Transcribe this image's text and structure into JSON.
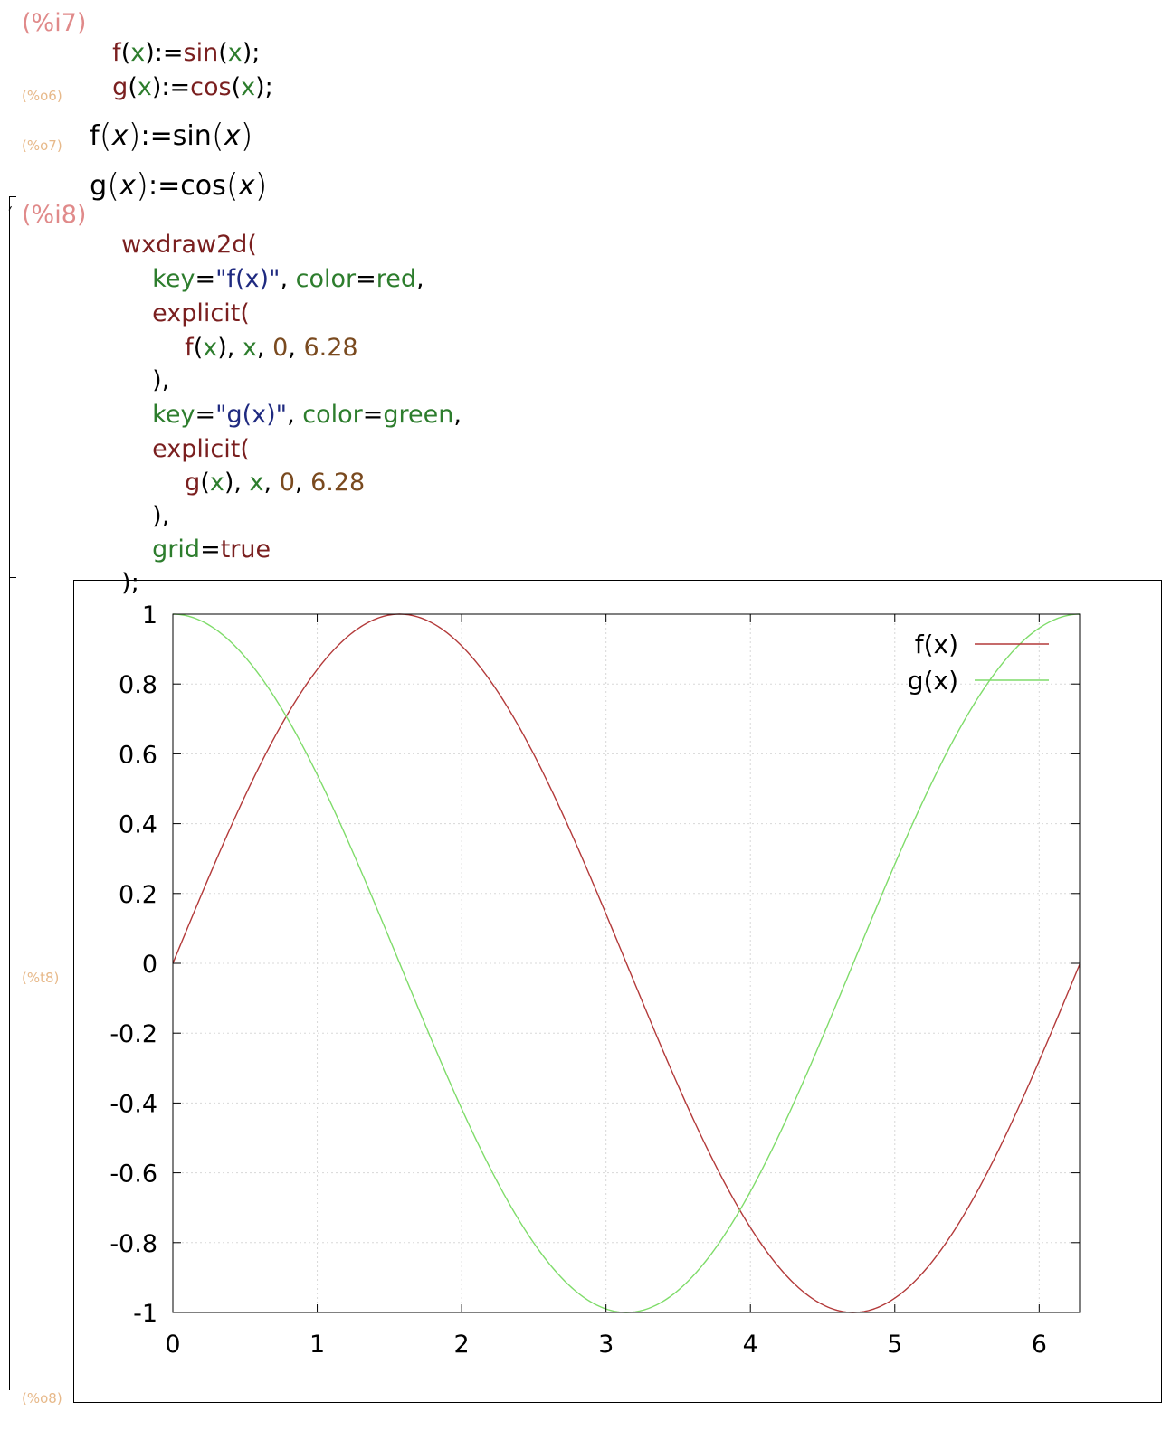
{
  "cells": {
    "c1_input_label": "(%i7)",
    "c1_line1": {
      "fname": "f",
      "paren_open": "(",
      "var": "x",
      "paren_close": ")",
      "assign": ":=",
      "rhs_fn": "sin",
      "rhs_open": "(",
      "rhs_var": "x",
      "rhs_close": ");"
    },
    "c1_line2": {
      "fname": "g",
      "paren_open": "(",
      "var": "x",
      "paren_close": ")",
      "assign": ":=",
      "rhs_fn": "cos",
      "rhs_open": "(",
      "rhs_var": "x",
      "rhs_close": ");"
    },
    "o6_label": "(%o6)",
    "o6": {
      "name": "f",
      "var": "x",
      "assign": ":=",
      "fn": "sin",
      "fnvar": "x"
    },
    "o7_label": "(%o7)",
    "o7": {
      "name": "g",
      "var": "x",
      "assign": ":=",
      "fn": "cos",
      "fnvar": "x"
    },
    "c2_input_label": "(%i8)",
    "c2_lines": {
      "l1": "wxdraw2d(",
      "l2_key": "key",
      "l2_eq": "=",
      "l2_q1": "\"",
      "l2_str": "f(x)",
      "l2_q2": "\"",
      "l2_comma": ", ",
      "l2_color": "color",
      "l2_eq2": "=",
      "l2_val": "red",
      "l2_end": ",",
      "l3": "explicit(",
      "l4_f": "f",
      "l4_open": "(",
      "l4_x": "x",
      "l4_close": "), ",
      "l4_x2": "x",
      "l4_c1": ", ",
      "l4_n0": "0",
      "l4_c2": ", ",
      "l4_n1": "6.28",
      "l5": "),",
      "l6_key": "key",
      "l6_eq": "=",
      "l6_q1": "\"",
      "l6_str": "g(x)",
      "l6_q2": "\"",
      "l6_comma": ", ",
      "l6_color": "color",
      "l6_eq2": "=",
      "l6_val": "green",
      "l6_end": ",",
      "l7": "explicit(",
      "l8_f": "g",
      "l8_open": "(",
      "l8_x": "x",
      "l8_close": "), ",
      "l8_x2": "x",
      "l8_c1": ", ",
      "l8_n0": "0",
      "l8_c2": ", ",
      "l8_n1": "6.28",
      "l9": "),",
      "l10_grid": "grid",
      "l10_eq": "=",
      "l10_val": "true",
      "l11": ");"
    },
    "t8_label": "(%t8)",
    "o8_label": "(%o8)"
  },
  "colors": {
    "input_label": "#e08a8a",
    "output_label": "#e7b98a",
    "function": "#7a1f1f",
    "variable": "#2d7d2d",
    "string": "#1f2a80",
    "number": "#7a4a1f",
    "series_f": "#b33a3a",
    "series_g": "#7fdc6a",
    "grid": "#d8d8d8"
  },
  "chart_data": {
    "type": "line",
    "title": "",
    "xlabel": "",
    "ylabel": "",
    "xlim": [
      0,
      6.28
    ],
    "ylim": [
      -1,
      1
    ],
    "grid": true,
    "legend_position": "top-right",
    "x_ticks": [
      0,
      1,
      2,
      3,
      4,
      5,
      6
    ],
    "x_tick_labels": [
      "0",
      "1",
      "2",
      "3",
      "4",
      "5",
      "6"
    ],
    "y_ticks": [
      1,
      0.8,
      0.6,
      0.4,
      0.2,
      0,
      -0.2,
      -0.4,
      -0.6,
      -0.8,
      -1
    ],
    "y_tick_labels": [
      "1",
      "0.8",
      "0.6",
      "0.4",
      "0.2",
      "0",
      "-0.2",
      "-0.4",
      "-0.6",
      "-0.8",
      "-1"
    ],
    "series": [
      {
        "name": "f(x)",
        "function": "sin",
        "color": "#b33a3a"
      },
      {
        "name": "g(x)",
        "function": "cos",
        "color": "#7fdc6a"
      }
    ]
  }
}
